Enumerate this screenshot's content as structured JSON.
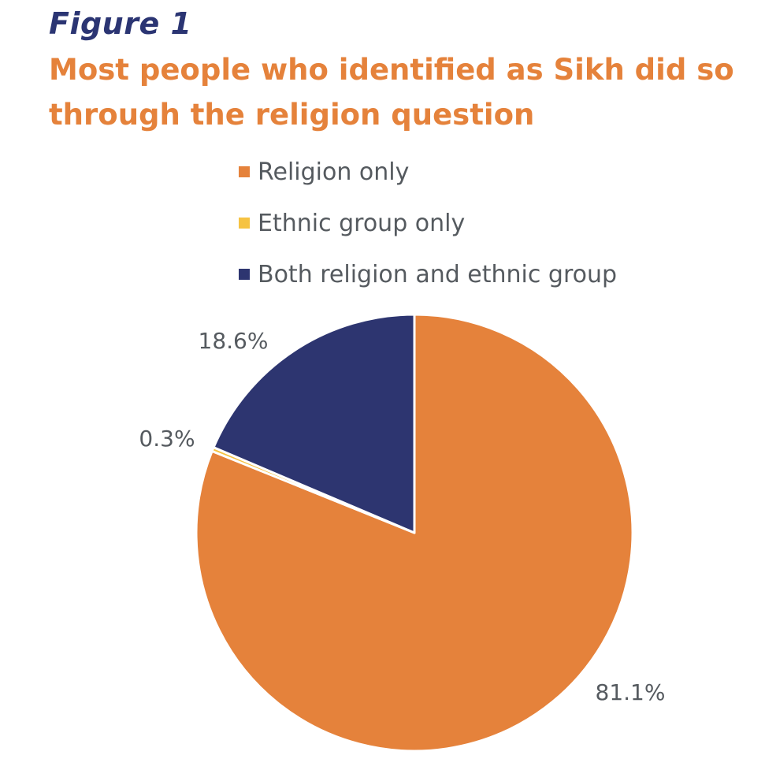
{
  "figure_label": "Figure 1",
  "chart_data": {
    "type": "pie",
    "title": "Most people who identified as Sikh did so through the religion question",
    "legend_position": "top",
    "slices": [
      {
        "name": "Religion only",
        "value": 81.1,
        "label": "81.1%",
        "color": "#e5823b"
      },
      {
        "name": "Ethnic group only",
        "value": 0.3,
        "label": "0.3%",
        "color": "#f6c342"
      },
      {
        "name": "Both religion and ethnic group",
        "value": 18.6,
        "label": "18.6%",
        "color": "#2d3570"
      }
    ]
  }
}
